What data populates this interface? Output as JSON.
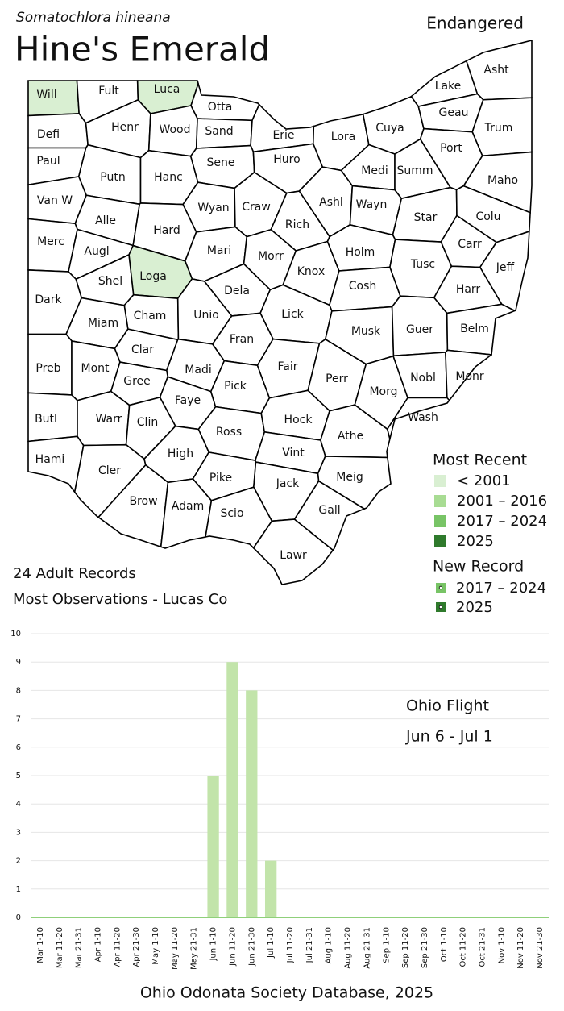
{
  "header": {
    "subtitle": "Somatochlora hineana",
    "title": "Hine's Emerald",
    "status": "Endangered"
  },
  "map": {
    "counties": [
      "Will",
      "Fult",
      "Luca",
      "Otta",
      "Defi",
      "Henr",
      "Wood",
      "Sand",
      "Erie",
      "Lora",
      "Cuya",
      "Lake",
      "Asht",
      "Geau",
      "Trum",
      "Paul",
      "Putn",
      "Hanc",
      "Sene",
      "Huro",
      "Medi",
      "Summ",
      "Port",
      "Maho",
      "Van W",
      "Alle",
      "Wyan",
      "Craw",
      "Ashl",
      "Wayn",
      "Star",
      "Colu",
      "Rich",
      "Merc",
      "Augl",
      "Hard",
      "Mari",
      "Morr",
      "Knox",
      "Holm",
      "Tusc",
      "Carr",
      "Jeff",
      "Shel",
      "Loga",
      "Dela",
      "Cosh",
      "Harr",
      "Dark",
      "Cham",
      "Unio",
      "Lick",
      "Miam",
      "Fran",
      "Musk",
      "Guer",
      "Belm",
      "Clar",
      "Madi",
      "Fair",
      "Perr",
      "Preb",
      "Mont",
      "Gree",
      "Faye",
      "Pick",
      "Morg",
      "Nobl",
      "Monr",
      "Butl",
      "Warr",
      "Clin",
      "Ross",
      "Hock",
      "Wash",
      "Athe",
      "Hami",
      "Cler",
      "High",
      "Vint",
      "Pike",
      "Jack",
      "Meig",
      "Brow",
      "Adam",
      "Scio",
      "Gall",
      "Lawr"
    ],
    "most_recent": {
      "title": "Most Recent",
      "items": [
        {
          "label": "< 2001",
          "color": "#d9efd2",
          "counties": [
            "Will",
            "Luca",
            "Loga"
          ]
        },
        {
          "label": "2001 – 2016",
          "color": "#a8dc93"
        },
        {
          "label": "2017 – 2024",
          "color": "#78c466"
        },
        {
          "label": "2025",
          "color": "#2f7a2c"
        }
      ]
    },
    "new_record": {
      "title": "New Record",
      "items": [
        {
          "label": "2017 – 2024",
          "color": "#78c466"
        },
        {
          "label": "2025",
          "color": "#2f7a2c"
        }
      ]
    }
  },
  "stats": {
    "records": "24 Adult Records",
    "most_observations": "Most Observations - Lucas Co"
  },
  "chart_data": {
    "type": "bar",
    "categories": [
      "Mar 1-10",
      "Mar 11-20",
      "Mar 21-31",
      "Apr 1-10",
      "Apr 11-20",
      "Apr 21-30",
      "May 1-10",
      "May 11-20",
      "May 21-31",
      "Jun 1-10",
      "Jun 11-20",
      "Jun 21-30",
      "Jul 1-10",
      "Jul 11-20",
      "Jul 21-31",
      "Aug 1-10",
      "Aug 11-20",
      "Aug 21-31",
      "Sep 1-10",
      "Sep 11-20",
      "Sep 21-30",
      "Oct 1-10",
      "Oct 11-20",
      "Oct 21-31",
      "Nov 1-10",
      "Nov 11-20",
      "Nov 21-30"
    ],
    "values": [
      0,
      0,
      0,
      0,
      0,
      0,
      0,
      0,
      0,
      5,
      9,
      8,
      2,
      0,
      0,
      0,
      0,
      0,
      0,
      0,
      0,
      0,
      0,
      0,
      0,
      0,
      0
    ],
    "color": "#c2e4aa",
    "axis_color": "#8fd07a",
    "ylim": [
      0,
      10
    ],
    "yticks": [
      0,
      1,
      2,
      3,
      4,
      5,
      6,
      7,
      8,
      9,
      10
    ],
    "grid": true,
    "annotations": [
      "Ohio Flight",
      "Jun 6 - Jul 1"
    ]
  },
  "footer": "Ohio Odonata Society Database, 2025"
}
